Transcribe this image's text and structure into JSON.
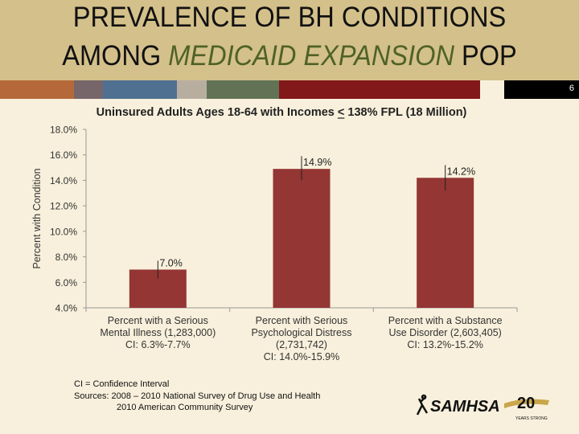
{
  "slide": {
    "title_line1": "PREVALENCE OF BH CONDITIONS",
    "title_line2_pre": "AMONG ",
    "title_line2_highlight": "MEDICAID EXPANSION",
    "title_line2_post": " POP",
    "slide_number": "6",
    "band_colors": [
      "#b5693a",
      "#766569",
      "#4f7090",
      "#b8aea0",
      "#627355",
      "#83181b",
      "#f8f0dc"
    ],
    "footnote_ci": "CI = Confidence Interval",
    "footnote_sources": "Sources: 2008 – 2010 National Survey of Drug Use and Health",
    "footnote_sources2": "2010 American Community Survey",
    "logo_text": "SAMHSA",
    "logo_years": "20",
    "logo_tagline": "YEARS STRONG"
  },
  "chart_data": {
    "type": "bar",
    "title": "Uninsured Adults Ages 18-64 with Incomes < 138% FPL (18 Million)",
    "ylabel": "Percent with Condition",
    "xlabel": "",
    "ylim": [
      4,
      18
    ],
    "yticks": [
      "4.0%",
      "6.0%",
      "8.0%",
      "10.0%",
      "12.0%",
      "14.0%",
      "16.0%",
      "18.0%"
    ],
    "grid": false,
    "bar_color": "#943634",
    "categories": [
      [
        "Percent with a Serious",
        "Mental Illness (1,283,000)",
        "CI: 6.3%-7.7%"
      ],
      [
        "Percent with Serious",
        "Psychological Distress",
        "(2,731,742)",
        "CI: 14.0%-15.9%"
      ],
      [
        "Percent with a Substance",
        "Use Disorder  (2,603,405)",
        "CI: 13.2%-15.2%"
      ]
    ],
    "values": [
      7.0,
      14.9,
      14.2
    ],
    "data_labels": [
      "7.0%",
      "14.9%",
      "14.2%"
    ],
    "ci_low": [
      6.3,
      14.0,
      13.2
    ],
    "ci_high": [
      7.7,
      15.9,
      15.2
    ]
  }
}
